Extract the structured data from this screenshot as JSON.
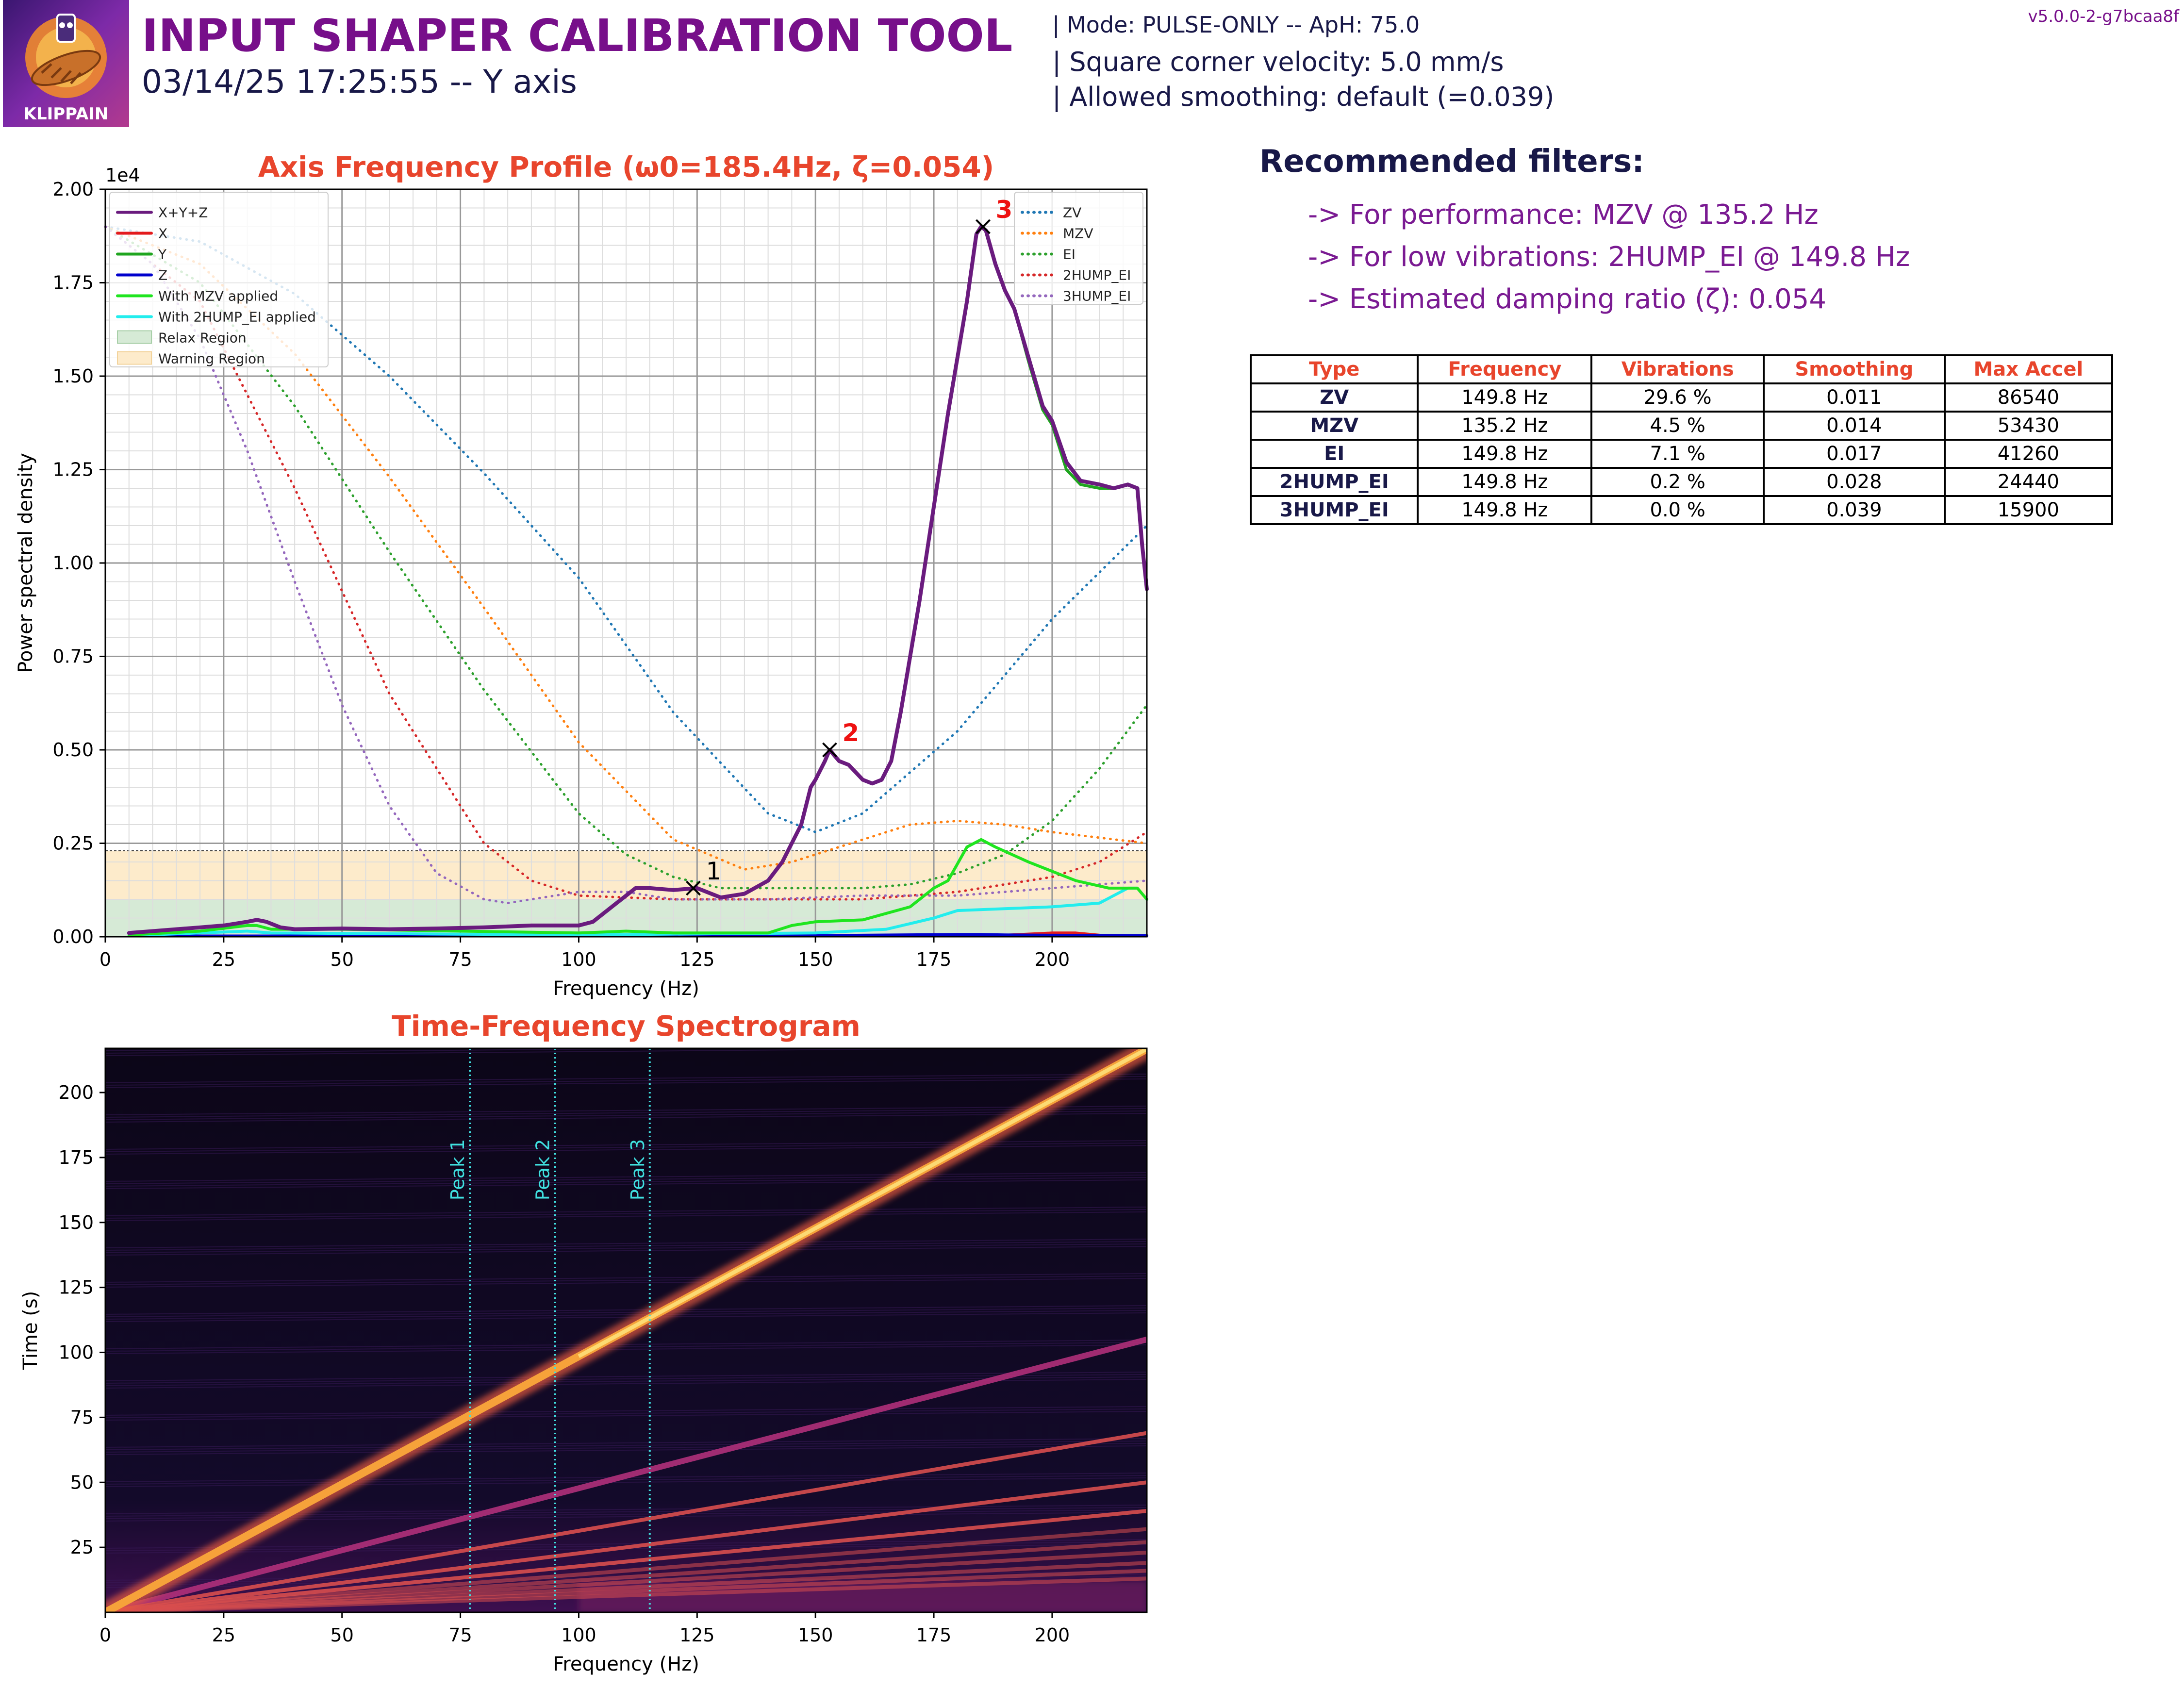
{
  "header": {
    "title": "INPUT SHAPER CALIBRATION TOOL",
    "subtitle": "03/14/25 17:25:55 -- Y axis",
    "mode": "| Mode: PULSE-ONLY -- ApH: 75.0",
    "scv": "| Square corner velocity: 5.0 mm/s",
    "smoothing": "| Allowed smoothing: default (=0.039)",
    "version": "v5.0.0-2-g7bcaa8f",
    "logo_text": "KLIPPAIN"
  },
  "recommendations": {
    "title": "Recommended filters:",
    "performance": "-> For performance: MZV @ 135.2 Hz",
    "low_vibrations": "-> For low vibrations: 2HUMP_EI @ 149.8 Hz",
    "damping": "-> Estimated damping ratio (ζ): 0.054"
  },
  "table": {
    "headers": [
      "Type",
      "Frequency",
      "Vibrations",
      "Smoothing",
      "Max Accel"
    ],
    "rows": [
      [
        "ZV",
        "149.8 Hz",
        "29.6 %",
        "0.011",
        "86540"
      ],
      [
        "MZV",
        "135.2 Hz",
        "4.5 %",
        "0.014",
        "53430"
      ],
      [
        "EI",
        "149.8 Hz",
        "7.1 %",
        "0.017",
        "41260"
      ],
      [
        "2HUMP_EI",
        "149.8 Hz",
        "0.2 %",
        "0.028",
        "24440"
      ],
      [
        "3HUMP_EI",
        "149.8 Hz",
        "0.0 %",
        "0.039",
        "15900"
      ]
    ]
  },
  "colors": {
    "title_red": "#e8452c",
    "purple": "#770f8a",
    "navy": "#181848",
    "xyz": "#6a1b7e",
    "x": "#e31a1c",
    "y": "#1fa51f",
    "z": "#0000cd",
    "mzv_applied": "#1fe51f",
    "hump_applied": "#22eded",
    "zv": "#1f77b4",
    "mzv": "#ff7f0e",
    "ei": "#2ca02c",
    "hump2": "#d62728",
    "hump3": "#9467bd",
    "relax": "#d6ead6",
    "warning": "#fdebcb",
    "peak_line": "#40e0e0"
  },
  "chart_data": [
    {
      "type": "line",
      "title": "Axis Frequency Profile (ω0=185.4Hz, ζ=0.054)",
      "xlabel": "Frequency (Hz)",
      "ylabel": "Power spectral density",
      "y_scale_label": "1e4",
      "xlim": [
        0,
        220
      ],
      "ylim": [
        0,
        2.0
      ],
      "x_ticks": [
        "0",
        "25",
        "50",
        "75",
        "100",
        "125",
        "150",
        "175",
        "200"
      ],
      "y_ticks": [
        "0.00",
        "0.25",
        "0.50",
        "0.75",
        "1.00",
        "1.25",
        "1.50",
        "1.75",
        "2.00"
      ],
      "grid": true,
      "legend_left": [
        "X+Y+Z",
        "X",
        "Y",
        "Z",
        "With MZV applied",
        "With 2HUMP_EI applied",
        "Relax Region",
        "Warning Region"
      ],
      "legend_right": [
        "ZV",
        "MZV",
        "EI",
        "2HUMP_EI",
        "3HUMP_EI"
      ],
      "relax_region": [
        0,
        0.1
      ],
      "warning_region": [
        0.1,
        0.23
      ],
      "series": [
        {
          "name": "X+Y+Z",
          "style": "solid",
          "x": [
            5,
            10,
            20,
            25,
            30,
            32,
            34,
            37,
            40,
            50,
            60,
            70,
            80,
            90,
            100,
            103,
            107,
            110,
            112,
            115,
            120,
            125,
            128,
            130,
            135,
            140,
            143,
            145,
            147,
            149,
            150,
            152,
            153,
            155,
            157,
            160,
            162,
            164,
            166,
            168,
            172,
            175,
            178,
            182,
            184,
            185,
            186,
            188,
            190,
            192,
            195,
            198,
            200,
            203,
            206,
            210,
            213,
            216,
            218,
            219,
            220
          ],
          "y": [
            0.01,
            0.015,
            0.025,
            0.03,
            0.04,
            0.045,
            0.04,
            0.025,
            0.02,
            0.022,
            0.02,
            0.022,
            0.025,
            0.03,
            0.03,
            0.04,
            0.08,
            0.11,
            0.13,
            0.13,
            0.125,
            0.13,
            0.115,
            0.105,
            0.115,
            0.15,
            0.2,
            0.25,
            0.3,
            0.4,
            0.42,
            0.47,
            0.5,
            0.47,
            0.46,
            0.42,
            0.41,
            0.42,
            0.47,
            0.6,
            0.9,
            1.15,
            1.4,
            1.7,
            1.88,
            1.9,
            1.89,
            1.8,
            1.73,
            1.68,
            1.55,
            1.42,
            1.38,
            1.27,
            1.22,
            1.21,
            1.2,
            1.21,
            1.2,
            1.05,
            0.93
          ]
        },
        {
          "name": "X",
          "style": "solid",
          "x": [
            5,
            50,
            100,
            150,
            190,
            200,
            205,
            210,
            220
          ],
          "y": [
            0.002,
            0.002,
            0.002,
            0.003,
            0.004,
            0.01,
            0.01,
            0.004,
            0.003
          ]
        },
        {
          "name": "Y",
          "style": "solid",
          "x": [
            5,
            10,
            20,
            25,
            30,
            32,
            34,
            37,
            40,
            50,
            60,
            70,
            80,
            90,
            100,
            103,
            107,
            110,
            112,
            115,
            120,
            125,
            128,
            130,
            135,
            140,
            143,
            145,
            147,
            149,
            150,
            152,
            153,
            155,
            157,
            160,
            162,
            164,
            166,
            168,
            172,
            175,
            178,
            182,
            184,
            185,
            186,
            188,
            190,
            192,
            195,
            198,
            200,
            203,
            206,
            210,
            213,
            216,
            218,
            219,
            220
          ],
          "y": [
            0.01,
            0.015,
            0.025,
            0.03,
            0.04,
            0.045,
            0.04,
            0.025,
            0.02,
            0.022,
            0.02,
            0.022,
            0.025,
            0.03,
            0.03,
            0.04,
            0.08,
            0.11,
            0.13,
            0.13,
            0.125,
            0.13,
            0.115,
            0.105,
            0.115,
            0.15,
            0.2,
            0.25,
            0.3,
            0.4,
            0.42,
            0.47,
            0.5,
            0.47,
            0.46,
            0.42,
            0.41,
            0.42,
            0.47,
            0.6,
            0.9,
            1.15,
            1.4,
            1.7,
            1.88,
            1.9,
            1.89,
            1.8,
            1.73,
            1.68,
            1.54,
            1.41,
            1.37,
            1.25,
            1.21,
            1.2,
            1.2,
            1.21,
            1.2,
            1.05,
            0.93
          ]
        },
        {
          "name": "Z",
          "style": "solid",
          "x": [
            5,
            100,
            150,
            180,
            185,
            190,
            200,
            220
          ],
          "y": [
            0.002,
            0.002,
            0.003,
            0.006,
            0.006,
            0.005,
            0.004,
            0.003
          ]
        },
        {
          "name": "With MZV applied",
          "style": "solid",
          "x": [
            5,
            20,
            30,
            32,
            35,
            50,
            100,
            110,
            120,
            140,
            145,
            150,
            160,
            170,
            175,
            178,
            182,
            185,
            188,
            195,
            205,
            212,
            218,
            220
          ],
          "y": [
            0.005,
            0.015,
            0.03,
            0.03,
            0.02,
            0.02,
            0.01,
            0.015,
            0.01,
            0.01,
            0.03,
            0.04,
            0.045,
            0.08,
            0.13,
            0.15,
            0.24,
            0.26,
            0.24,
            0.2,
            0.15,
            0.13,
            0.13,
            0.1
          ]
        },
        {
          "name": "With 2HUMP_EI applied",
          "style": "solid",
          "x": [
            5,
            30,
            35,
            100,
            150,
            165,
            175,
            180,
            190,
            200,
            210,
            216,
            218,
            220
          ],
          "y": [
            0.003,
            0.015,
            0.01,
            0.005,
            0.01,
            0.02,
            0.05,
            0.07,
            0.075,
            0.08,
            0.09,
            0.13,
            0.13,
            0.1
          ]
        },
        {
          "name": "ZV",
          "style": "dotted",
          "x": [
            0,
            20,
            40,
            60,
            80,
            100,
            120,
            140,
            150,
            160,
            180,
            200,
            220
          ],
          "y": [
            1.9,
            1.86,
            1.72,
            1.5,
            1.24,
            0.96,
            0.6,
            0.33,
            0.28,
            0.33,
            0.55,
            0.85,
            1.1
          ]
        },
        {
          "name": "MZV",
          "style": "dotted",
          "x": [
            0,
            20,
            40,
            60,
            80,
            100,
            120,
            135,
            145,
            160,
            170,
            180,
            190,
            200,
            220
          ],
          "y": [
            1.9,
            1.8,
            1.56,
            1.23,
            0.88,
            0.52,
            0.26,
            0.18,
            0.2,
            0.26,
            0.3,
            0.31,
            0.3,
            0.28,
            0.25
          ]
        },
        {
          "name": "EI",
          "style": "dotted",
          "x": [
            0,
            20,
            40,
            60,
            80,
            100,
            110,
            120,
            130,
            140,
            160,
            170,
            180,
            190,
            200,
            210,
            220
          ],
          "y": [
            1.9,
            1.75,
            1.42,
            1.03,
            0.66,
            0.33,
            0.22,
            0.16,
            0.13,
            0.13,
            0.13,
            0.14,
            0.17,
            0.22,
            0.31,
            0.45,
            0.62
          ]
        },
        {
          "name": "2HUMP_EI",
          "style": "dotted",
          "x": [
            0,
            20,
            40,
            60,
            80,
            90,
            100,
            120,
            140,
            160,
            180,
            200,
            210,
            220
          ],
          "y": [
            1.9,
            1.7,
            1.2,
            0.65,
            0.25,
            0.15,
            0.11,
            0.1,
            0.1,
            0.1,
            0.12,
            0.16,
            0.2,
            0.28
          ]
        },
        {
          "name": "3HUMP_EI",
          "style": "dotted",
          "x": [
            0,
            10,
            20,
            30,
            40,
            50,
            60,
            70,
            80,
            85,
            90,
            100,
            110,
            120,
            140,
            160,
            180,
            200,
            220
          ],
          "y": [
            1.9,
            1.8,
            1.6,
            1.3,
            0.95,
            0.62,
            0.35,
            0.17,
            0.1,
            0.09,
            0.1,
            0.12,
            0.12,
            0.1,
            0.1,
            0.11,
            0.11,
            0.13,
            0.15
          ]
        }
      ],
      "peaks": [
        {
          "label": "1",
          "x": 124.2,
          "y": 0.13
        },
        {
          "label": "2",
          "x": 153,
          "y": 0.5
        },
        {
          "label": "3",
          "x": 185.4,
          "y": 1.9
        }
      ]
    },
    {
      "type": "heatmap",
      "title": "Time-Frequency Spectrogram",
      "xlabel": "Frequency (Hz)",
      "ylabel": "Time (s)",
      "xlim": [
        0,
        220
      ],
      "ylim": [
        0,
        217
      ],
      "x_ticks": [
        "0",
        "25",
        "50",
        "75",
        "100",
        "125",
        "150",
        "175",
        "200"
      ],
      "y_ticks": [
        "25",
        "50",
        "75",
        "100",
        "125",
        "150",
        "175",
        "200"
      ],
      "fundamental_slope_hz_per_s": 1.015,
      "harmonic_ends": [
        {
          "f": 220,
          "t": 105
        },
        {
          "f": 220,
          "t": 69
        },
        {
          "f": 220,
          "t": 50
        },
        {
          "f": 220,
          "t": 39
        },
        {
          "f": 220,
          "t": 32
        },
        {
          "f": 220,
          "t": 27
        },
        {
          "f": 220,
          "t": 23
        },
        {
          "f": 220,
          "t": 19
        },
        {
          "f": 220,
          "t": 16
        },
        {
          "f": 220,
          "t": 13
        }
      ],
      "peak_lines": [
        {
          "label": "Peak 1",
          "x": 77
        },
        {
          "label": "Peak 2",
          "x": 95
        },
        {
          "label": "Peak 3",
          "x": 115
        }
      ]
    }
  ]
}
